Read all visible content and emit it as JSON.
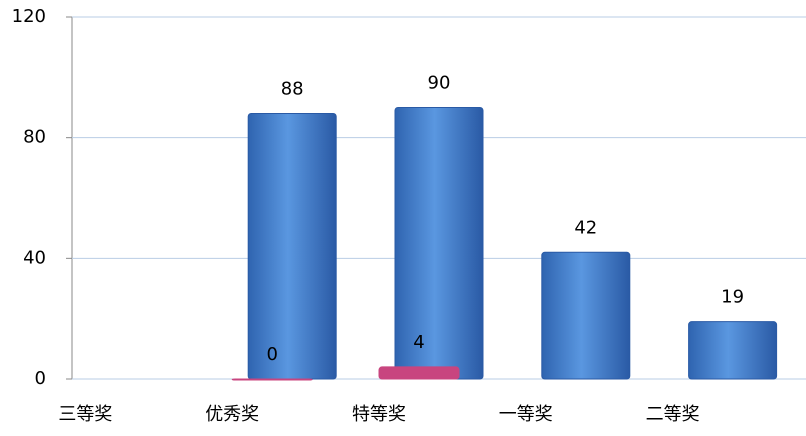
{
  "chart_data": {
    "type": "bar",
    "categories": [
      "三等奖",
      "优秀奖",
      "特等奖",
      "一等奖",
      "二等奖"
    ],
    "series": [
      {
        "color": "#3f7fcf",
        "values": [
          null,
          88,
          90,
          42,
          19
        ]
      },
      {
        "color": "#c8457f",
        "values": [
          null,
          0,
          4,
          null,
          null
        ]
      }
    ],
    "ylim": [
      0,
      120
    ],
    "yticks": [
      0,
      40,
      80,
      120
    ],
    "grid": true
  }
}
